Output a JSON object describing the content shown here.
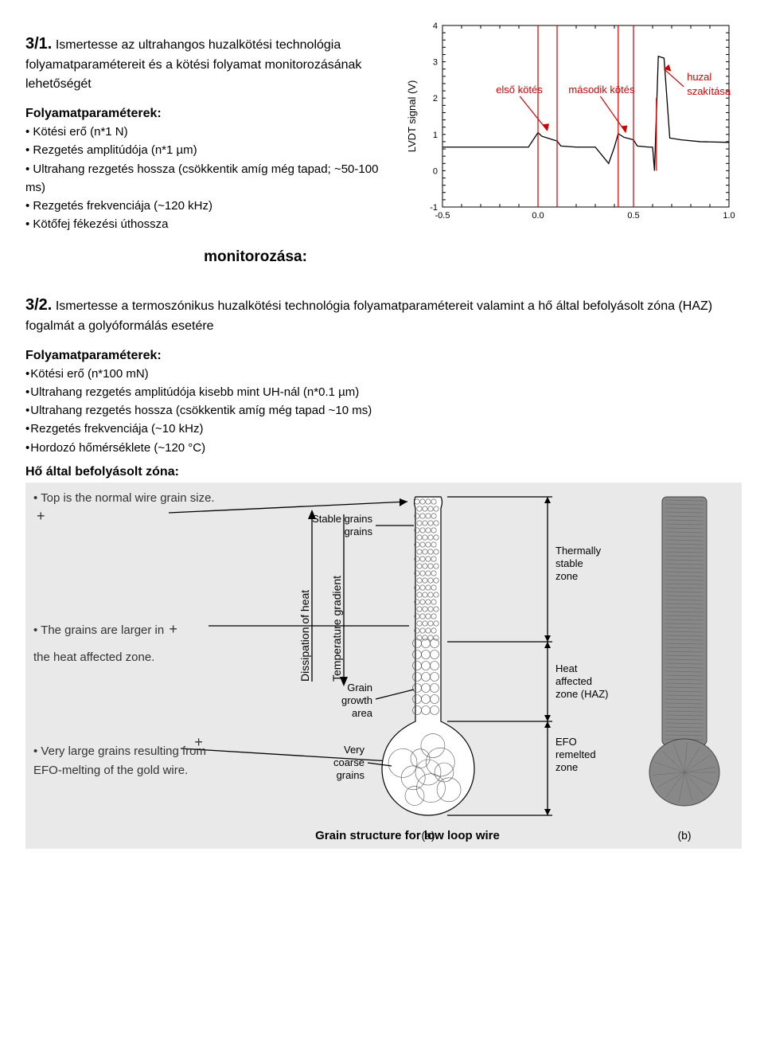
{
  "q1": {
    "number": "3/1.",
    "prompt": "Ismertesse az ultrahangos huzalkötési technológia folyamatparamétereit és a kötési folyamat monitorozásának lehetőségét",
    "params_heading": "Folyamatparaméterek:",
    "params": [
      "Kötési erő (n*1 N)",
      "Rezgetés amplitúdója (n*1 µm)",
      "Ultrahang rezgetés hossza (csökkentik amíg még tapad; ~50-100 ms)",
      "Rezgetés frekvenciája (~120 kHz)",
      "Kötőfej fékezési úthossza"
    ],
    "monitor_heading": "monitorozása:"
  },
  "lvdt_chart": {
    "type": "line",
    "ylabel": "LVDT signal (V)",
    "xlim": [
      -0.5,
      1.0
    ],
    "ylim": [
      -1,
      4
    ],
    "xticks": [
      -0.5,
      0.0,
      0.5,
      1.0
    ],
    "yticks": [
      -1,
      0,
      1,
      2,
      3,
      4
    ],
    "minor_step_x": 0.1,
    "minor_step_y": 0.2,
    "background_color": "#ffffff",
    "curve_color": "#000000",
    "marker_line_color": "#d00000",
    "annotations": {
      "first_bond": "első kötés",
      "second_bond": "második kötés",
      "wire_break1": "huzal",
      "wire_break2": "szakítása"
    },
    "vlines_x": [
      0.0,
      0.1,
      0.42,
      0.5
    ],
    "spike_x": 0.62,
    "series": [
      [
        -0.5,
        0.65
      ],
      [
        -0.05,
        0.65
      ],
      [
        0.0,
        1.05
      ],
      [
        0.02,
        0.95
      ],
      [
        0.05,
        0.9
      ],
      [
        0.08,
        0.85
      ],
      [
        0.1,
        0.82
      ],
      [
        0.12,
        0.68
      ],
      [
        0.2,
        0.65
      ],
      [
        0.3,
        0.65
      ],
      [
        0.37,
        0.2
      ],
      [
        0.4,
        0.65
      ],
      [
        0.42,
        1.02
      ],
      [
        0.45,
        0.92
      ],
      [
        0.48,
        0.88
      ],
      [
        0.5,
        0.85
      ],
      [
        0.52,
        0.68
      ],
      [
        0.58,
        0.65
      ],
      [
        0.6,
        0.65
      ],
      [
        0.61,
        0.0
      ],
      [
        0.63,
        3.15
      ],
      [
        0.66,
        3.1
      ],
      [
        0.69,
        0.9
      ],
      [
        0.75,
        0.85
      ],
      [
        0.85,
        0.8
      ],
      [
        1.0,
        0.78
      ]
    ]
  },
  "q2": {
    "number": "3/2.",
    "prompt": "Ismertesse a termoszónikus huzalkötési technológia folyamatparamétereit valamint a hő által befolyásolt zóna (HAZ) fogalmát a golyóformálás esetére",
    "params_heading": "Folyamatparaméterek:",
    "params": [
      "Kötési erő (n*100 mN)",
      "Ultrahang rezgetés amplitúdója kisebb mint UH-nál (n*0.1 µm)",
      "Ultrahang rezgetés hossza (csökkentik amíg még tapad ~10 ms)",
      "Rezgetés frekvenciája (~10 kHz)",
      "Hordozó hőmérséklete (~120 °C)"
    ],
    "haz_heading": "Hő által befolyásolt zóna:"
  },
  "haz_diagram": {
    "left_points": [
      "Top is the normal wire grain size.",
      "The grains are larger in",
      "the heat affected zone.",
      "Very large grains resulting from EFO-melting of the gold wire."
    ],
    "vertical_labels": {
      "dissipation": "Dissipation of heat",
      "gradient": "Temperature gradient"
    },
    "wire_labels": {
      "stable": "Stable grains",
      "growth1": "Grain",
      "growth2": "growth",
      "growth3": "area",
      "coarse1": "Very",
      "coarse2": "coarse",
      "coarse3": "grains"
    },
    "zone_labels": {
      "tsz1": "Thermally",
      "tsz2": "stable",
      "tsz3": "zone",
      "haz1": "Heat",
      "haz2": "affected",
      "haz3": "zone (HAZ)",
      "efo1": "EFO",
      "efo2": "remelted",
      "efo3": "zone"
    },
    "caption": "Grain structure for low loop wire",
    "sublabels": {
      "a": "(a)",
      "b": "(b)"
    },
    "colors": {
      "bg": "#e9e9e9",
      "wire_outline": "#000000",
      "wire_fill": "#ffffff",
      "photo_fill": "#8a8a8a",
      "text": "#000000"
    }
  }
}
